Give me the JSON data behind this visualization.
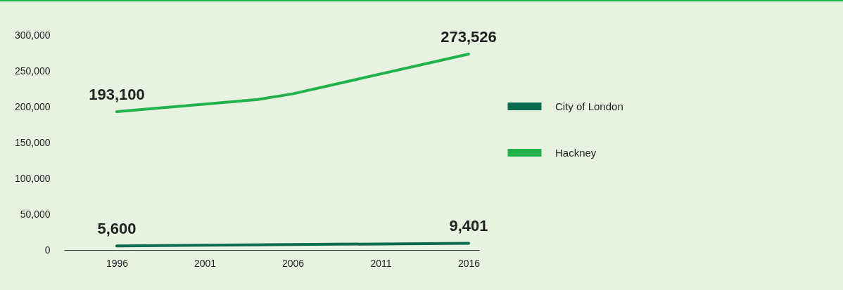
{
  "chart_data": {
    "type": "line",
    "series": [
      {
        "name": "City of London",
        "color": "#0b6b4e",
        "x": [
          1996,
          2016
        ],
        "values": [
          5600,
          9401
        ],
        "value_labels": [
          "5,600",
          "9,401"
        ]
      },
      {
        "name": "Hackney",
        "color": "#22b24c",
        "x": [
          1996,
          2004,
          2006,
          2016
        ],
        "values": [
          193100,
          210000,
          218000,
          273526
        ],
        "value_labels": [
          "193,100",
          null,
          null,
          "273,526"
        ]
      }
    ],
    "xlim": [
      1993,
      2016.6
    ],
    "xticks": [
      1996,
      2001,
      2006,
      2011,
      2016
    ],
    "ylim": [
      0,
      300000
    ],
    "yticks": [
      0,
      {
        "value": 50000,
        "label": "50,000"
      },
      {
        "value": 100000,
        "label": "100,000"
      },
      {
        "value": 150000,
        "label": "150,000"
      },
      {
        "value": 200000,
        "label": "200,000"
      },
      {
        "value": 250000,
        "label": "250,000"
      },
      {
        "value": 300000,
        "label": "300,000"
      }
    ],
    "grid": false,
    "legend": "right",
    "marker": "none",
    "line_style": "solid"
  }
}
